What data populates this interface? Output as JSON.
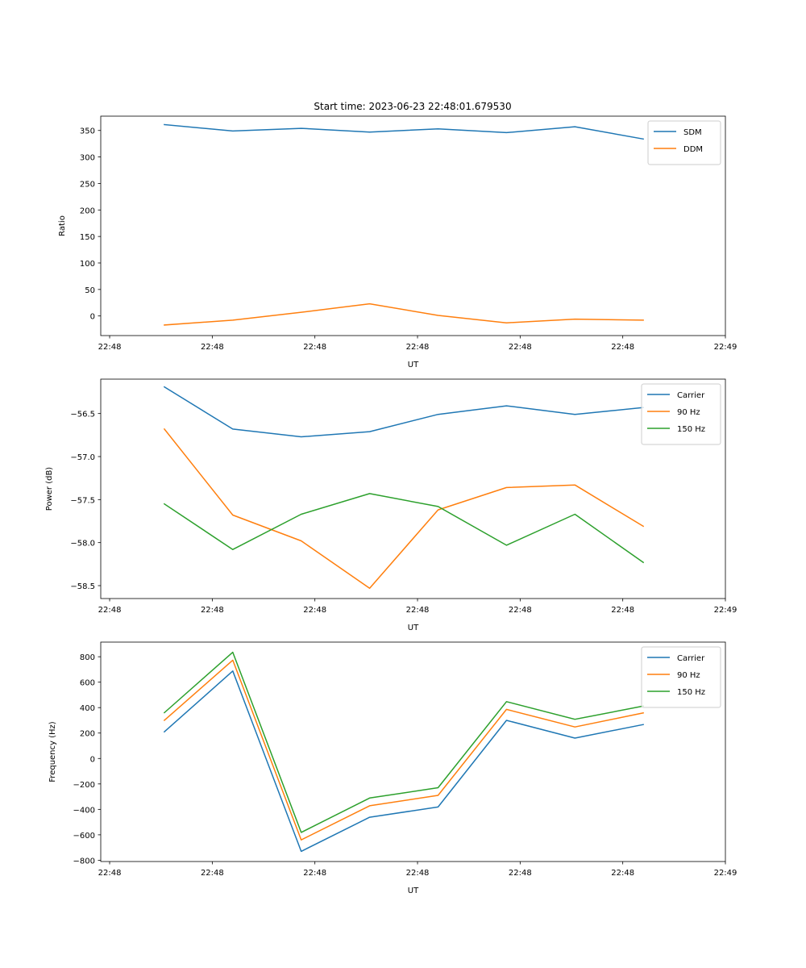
{
  "figure": {
    "title": "Start time: 2023-06-23 22:48:01.679530"
  },
  "chart_data": [
    {
      "type": "line",
      "xlabel": "UT",
      "ylabel": "Ratio",
      "x": [
        1,
        2,
        3,
        4,
        5,
        6,
        7,
        8
      ],
      "xlim": [
        0.07,
        9.2
      ],
      "x_ticks": [
        0.2,
        1.7,
        3.2,
        4.7,
        6.2,
        7.7,
        9.2
      ],
      "x_tick_labels": [
        "22:48",
        "22:48",
        "22:48",
        "22:48",
        "22:48",
        "22:48",
        "22:49"
      ],
      "ylim": [
        -37,
        377
      ],
      "y_ticks": [
        0,
        50,
        100,
        150,
        200,
        250,
        300,
        350
      ],
      "y_tick_labels": [
        "0",
        "50",
        "100",
        "150",
        "200",
        "250",
        "300",
        "350"
      ],
      "legend": "top-right",
      "series": [
        {
          "name": "SDM",
          "color": "#1f77b4",
          "values": [
            361,
            349,
            354,
            347,
            353,
            346,
            357,
            334
          ]
        },
        {
          "name": "DDM",
          "color": "#ff7f0e",
          "values": [
            -17,
            -8,
            7,
            23,
            1,
            -13,
            -6,
            -8
          ]
        }
      ]
    },
    {
      "type": "line",
      "xlabel": "UT",
      "ylabel": "Power (dB)",
      "x": [
        1,
        2,
        3,
        4,
        5,
        6,
        7,
        8
      ],
      "xlim": [
        0.07,
        9.2
      ],
      "x_ticks": [
        0.2,
        1.7,
        3.2,
        4.7,
        6.2,
        7.7,
        9.2
      ],
      "x_tick_labels": [
        "22:48",
        "22:48",
        "22:48",
        "22:48",
        "22:48",
        "22:48",
        "22:49"
      ],
      "ylim": [
        -58.65,
        -56.1
      ],
      "y_ticks": [
        -58.5,
        -58.0,
        -57.5,
        -57.0,
        -56.5
      ],
      "y_tick_labels": [
        "−58.5",
        "−58.0",
        "−57.5",
        "−57.0",
        "−56.5"
      ],
      "legend": "top-right",
      "series": [
        {
          "name": "Carrier",
          "color": "#1f77b4",
          "values": [
            -56.19,
            -56.68,
            -56.77,
            -56.71,
            -56.51,
            -56.41,
            -56.51,
            -56.43
          ]
        },
        {
          "name": "90 Hz",
          "color": "#ff7f0e",
          "values": [
            -56.68,
            -57.68,
            -57.98,
            -58.53,
            -57.62,
            -57.36,
            -57.33,
            -57.81
          ]
        },
        {
          "name": "150 Hz",
          "color": "#2ca02c",
          "values": [
            -57.55,
            -58.08,
            -57.67,
            -57.43,
            -57.58,
            -58.03,
            -57.67,
            -58.23
          ]
        }
      ]
    },
    {
      "type": "line",
      "xlabel": "UT",
      "ylabel": "Frequency (Hz)",
      "x": [
        1,
        2,
        3,
        4,
        5,
        6,
        7,
        8
      ],
      "xlim": [
        0.07,
        9.2
      ],
      "x_ticks": [
        0.2,
        1.7,
        3.2,
        4.7,
        6.2,
        7.7,
        9.2
      ],
      "x_tick_labels": [
        "22:48",
        "22:48",
        "22:48",
        "22:48",
        "22:48",
        "22:48",
        "22:49"
      ],
      "ylim": [
        -810,
        915
      ],
      "y_ticks": [
        -800,
        -600,
        -400,
        -200,
        0,
        200,
        400,
        600,
        800
      ],
      "y_tick_labels": [
        "−800",
        "−600",
        "−400",
        "−200",
        "0",
        "200",
        "400",
        "600",
        "800"
      ],
      "legend": "top-right",
      "series": [
        {
          "name": "Carrier",
          "color": "#1f77b4",
          "values": [
            210,
            688,
            -730,
            -462,
            -381,
            300,
            160,
            267
          ]
        },
        {
          "name": "90 Hz",
          "color": "#ff7f0e",
          "values": [
            300,
            773,
            -640,
            -372,
            -290,
            386,
            248,
            358
          ]
        },
        {
          "name": "150 Hz",
          "color": "#2ca02c",
          "values": [
            360,
            835,
            -581,
            -311,
            -230,
            447,
            308,
            412
          ]
        }
      ]
    }
  ]
}
